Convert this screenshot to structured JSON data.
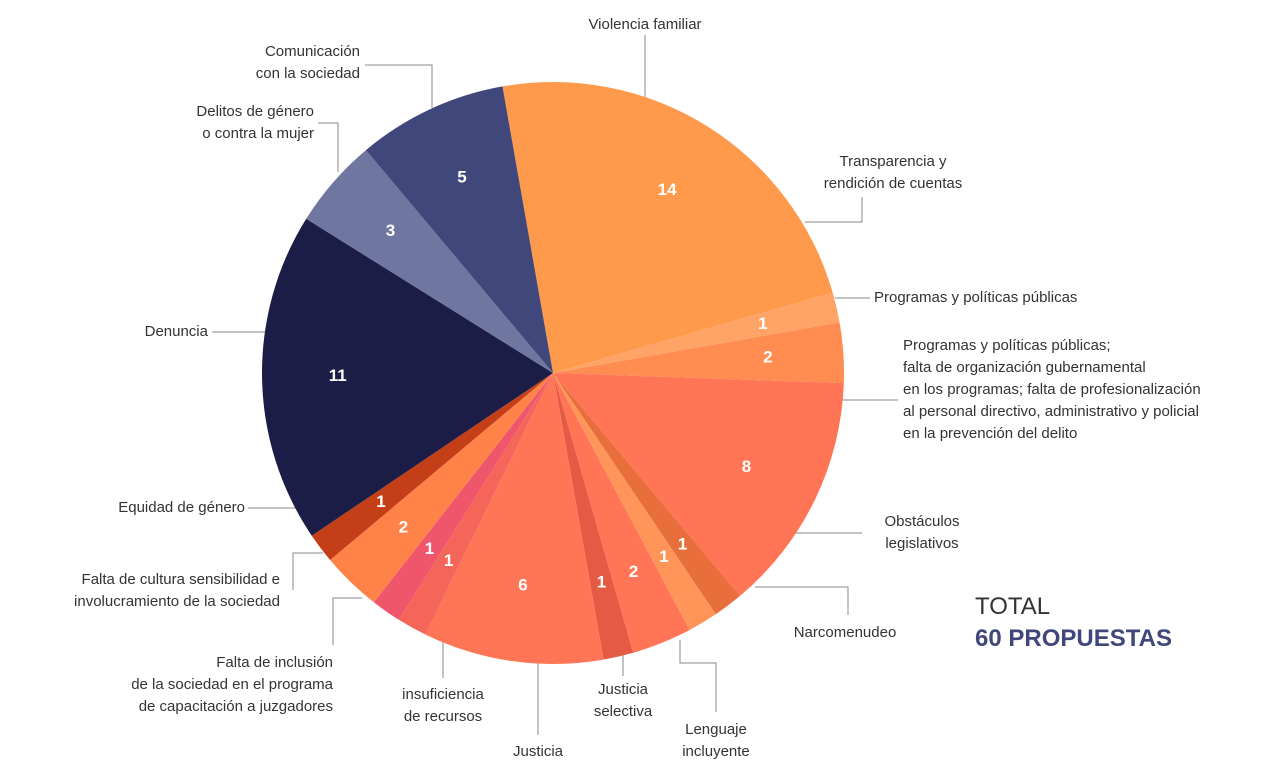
{
  "chart_data": {
    "type": "pie",
    "categories": [
      "Violencia familiar",
      "Transparencia y\nrendición de cuentas",
      "Programas y políticas públicas",
      "Programas y políticas públicas;\nfalta de organización gubernamental\nen los programas; falta de profesionalización\nal personal directivo, administrativo y policial\nen la prevención del delito",
      "Obstáculos\nlegislativos",
      "Narcomenudeo",
      "Lenguaje\nincluyente",
      "Justicia\nselectiva",
      "Justicia",
      "insuficiencia\nde recursos",
      "Falta de inclusión\nde la sociedad en el programa\nde capacitación a juzgadores",
      "Falta de cultura sensibilidad e\ninvolucramiento de la sociedad",
      "Equidad de género",
      "Denuncia",
      "Delitos de género\no contra la mujer",
      "Comunicación\ncon la sociedad"
    ],
    "values": [
      14,
      1,
      2,
      8,
      1,
      1,
      2,
      1,
      6,
      1,
      1,
      2,
      1,
      11,
      3,
      5
    ],
    "colors": [
      "#ff9a4d",
      "#ffa366",
      "#ff8c50",
      "#ff7555",
      "#e86f3c",
      "#ff9559",
      "#ff7555",
      "#e55a45",
      "#ff7656",
      "#f5655a",
      "#f0566b",
      "#ff8248",
      "#c43e17",
      "#1b1d46",
      "#6f77a0",
      "#40477a"
    ],
    "total_label": "TOTAL",
    "total_value": "60 PROPUESTAS"
  }
}
